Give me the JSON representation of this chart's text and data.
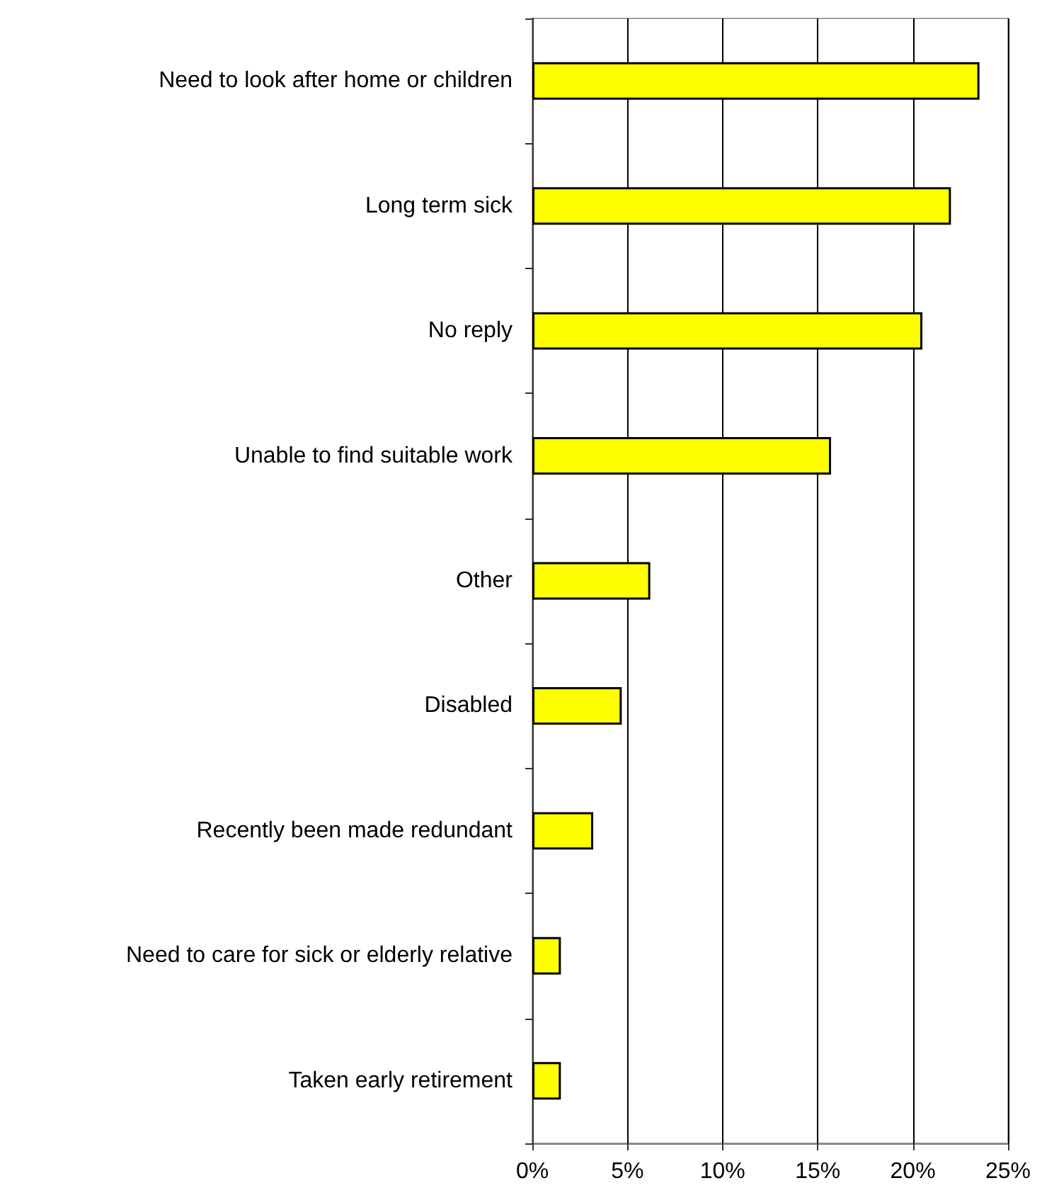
{
  "chart_data": {
    "type": "bar",
    "orientation": "horizontal",
    "categories": [
      "Need to look after home or children",
      "Long term sick",
      "No reply",
      "Unable to find suitable work",
      "Other",
      "Disabled",
      "Recently been made redundant",
      "Need to care for sick or elderly relative",
      "Taken early retirement"
    ],
    "values": [
      23.5,
      22.0,
      20.5,
      15.7,
      6.2,
      4.7,
      3.2,
      1.5,
      1.5
    ],
    "color": "#ffff00",
    "xlim": [
      0,
      25
    ],
    "xticks": [
      {
        "value": 0,
        "label": "0%"
      },
      {
        "value": 5,
        "label": "5%"
      },
      {
        "value": 10,
        "label": "10%"
      },
      {
        "value": 15,
        "label": "15%"
      },
      {
        "value": 20,
        "label": "20%"
      },
      {
        "value": 25,
        "label": "25%"
      }
    ],
    "grid": "x"
  }
}
